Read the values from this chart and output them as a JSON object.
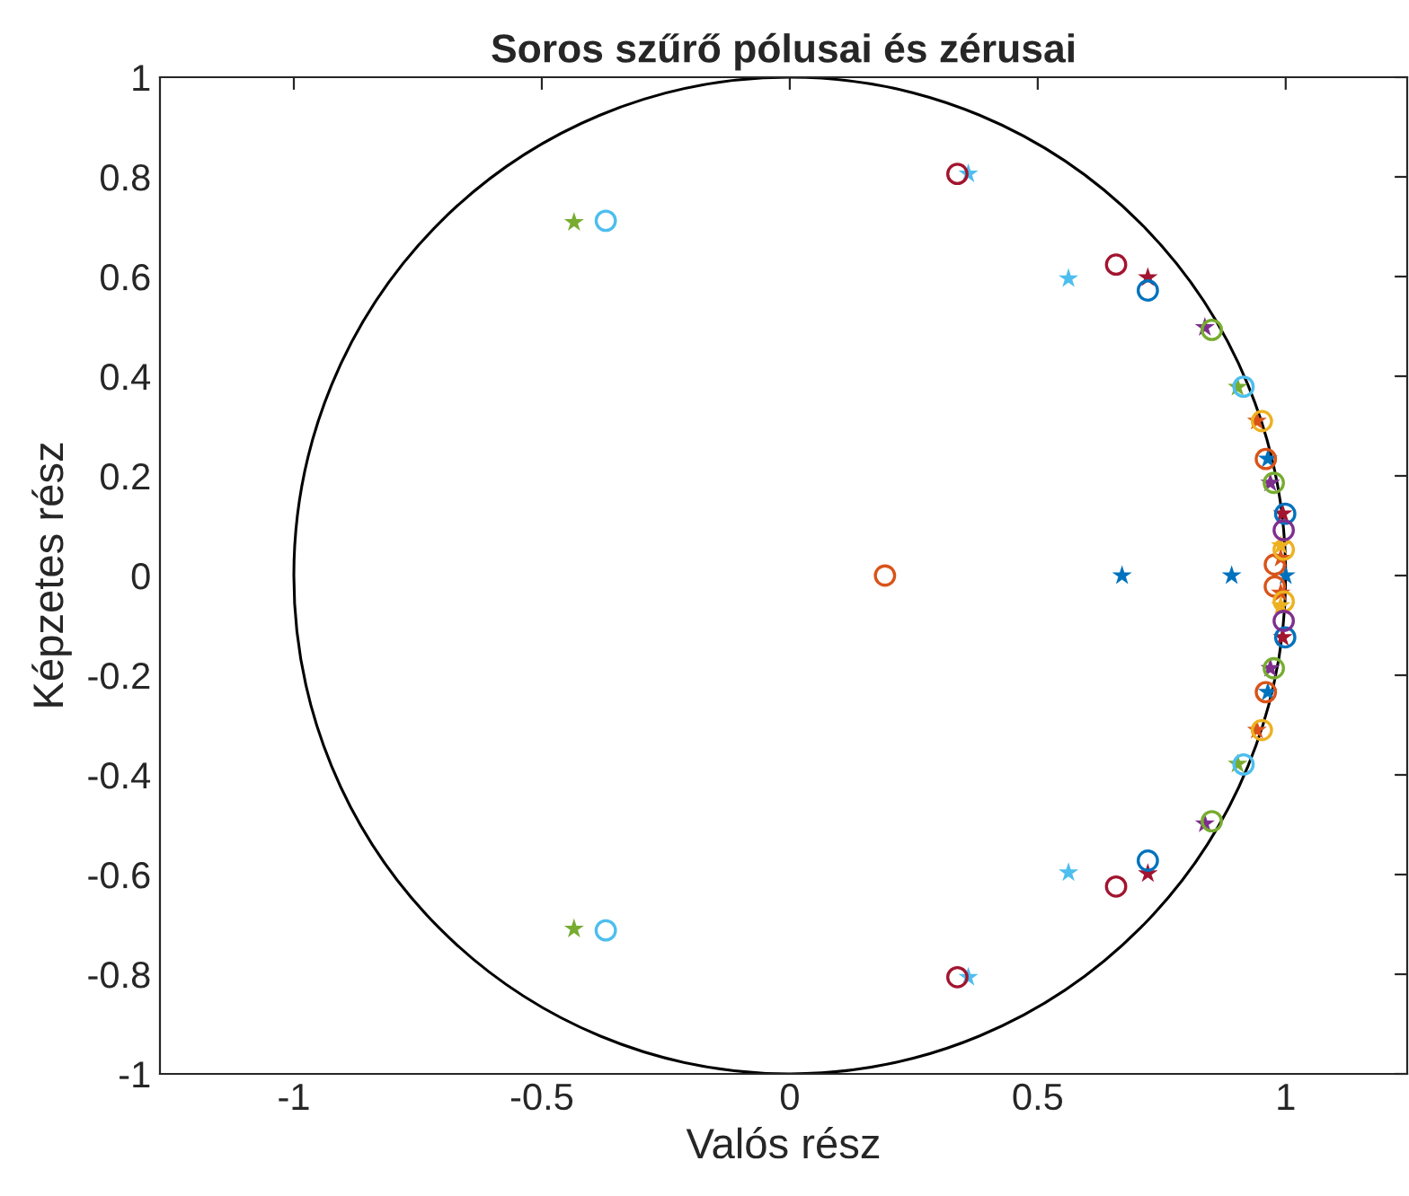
{
  "chart_data": {
    "type": "scatter",
    "title": "Soros szűrő pólusai és zérusai",
    "xlabel": "Valós rész",
    "ylabel": "Képzetes rész",
    "xlim": [
      -1.27,
      1.245
    ],
    "ylim": [
      -1,
      1
    ],
    "xticks": [
      -1,
      -0.5,
      0,
      0.5,
      1
    ],
    "yticks": [
      -1,
      -0.8,
      -0.6,
      -0.4,
      -0.2,
      0,
      0.2,
      0.4,
      0.6,
      0.8,
      1
    ],
    "grid": false,
    "series": [
      {
        "color": "#0072bd",
        "marker": "circle",
        "x": [
          0.722,
          0.722,
          0.999,
          0.999
        ],
        "values": [
          0.572,
          -0.572,
          0.124,
          -0.124
        ]
      },
      {
        "color": "#0072bd",
        "marker": "star",
        "x": [
          0.67,
          0.891,
          0.964,
          0.964,
          1.0
        ],
        "values": [
          0,
          0,
          0.234,
          -0.234,
          0
        ]
      },
      {
        "color": "#d95319",
        "marker": "circle",
        "x": [
          0.192,
          0.96,
          0.96,
          0.978,
          0.978
        ],
        "values": [
          0,
          0.234,
          -0.234,
          0.022,
          -0.022
        ]
      },
      {
        "color": "#d95319",
        "marker": "star",
        "x": [
          0.942,
          0.942,
          0.99,
          0.99
        ],
        "values": [
          0.31,
          -0.31,
          0.035,
          -0.035
        ]
      },
      {
        "color": "#edb120",
        "marker": "circle",
        "x": [
          0.952,
          0.952,
          0.996,
          0.996
        ],
        "values": [
          0.31,
          -0.31,
          0.052,
          -0.052
        ]
      },
      {
        "color": "#edb120",
        "marker": "star",
        "x": [
          0.99,
          0.99
        ],
        "values": [
          0.06,
          -0.06
        ]
      },
      {
        "color": "#7e2f8e",
        "marker": "circle",
        "x": [
          0.996,
          0.996
        ],
        "values": [
          0.091,
          -0.091
        ]
      },
      {
        "color": "#7e2f8e",
        "marker": "star",
        "x": [
          0.837,
          0.837,
          0.969,
          0.969
        ],
        "values": [
          0.498,
          -0.498,
          0.186,
          -0.186
        ]
      },
      {
        "color": "#77ac30",
        "marker": "circle",
        "x": [
          0.851,
          0.851,
          0.976,
          0.976
        ],
        "values": [
          0.493,
          -0.493,
          0.186,
          -0.186
        ]
      },
      {
        "color": "#77ac30",
        "marker": "star",
        "x": [
          -0.435,
          -0.435,
          0.903,
          0.903
        ],
        "values": [
          0.709,
          -0.709,
          0.378,
          -0.378
        ]
      },
      {
        "color": "#4dbeee",
        "marker": "circle",
        "x": [
          -0.371,
          -0.371,
          0.915,
          0.915
        ],
        "values": [
          0.712,
          -0.712,
          0.379,
          -0.379
        ]
      },
      {
        "color": "#4dbeee",
        "marker": "star",
        "x": [
          0.36,
          0.36,
          0.562,
          0.562
        ],
        "values": [
          0.806,
          -0.806,
          0.596,
          -0.596
        ]
      },
      {
        "color": "#a2142f",
        "marker": "circle",
        "x": [
          0.338,
          0.338,
          0.658,
          0.658
        ],
        "values": [
          0.806,
          -0.806,
          0.624,
          -0.624
        ]
      },
      {
        "color": "#a2142f",
        "marker": "star",
        "x": [
          0.722,
          0.722,
          0.994,
          0.994
        ],
        "values": [
          0.598,
          -0.598,
          0.124,
          -0.124
        ]
      }
    ]
  }
}
